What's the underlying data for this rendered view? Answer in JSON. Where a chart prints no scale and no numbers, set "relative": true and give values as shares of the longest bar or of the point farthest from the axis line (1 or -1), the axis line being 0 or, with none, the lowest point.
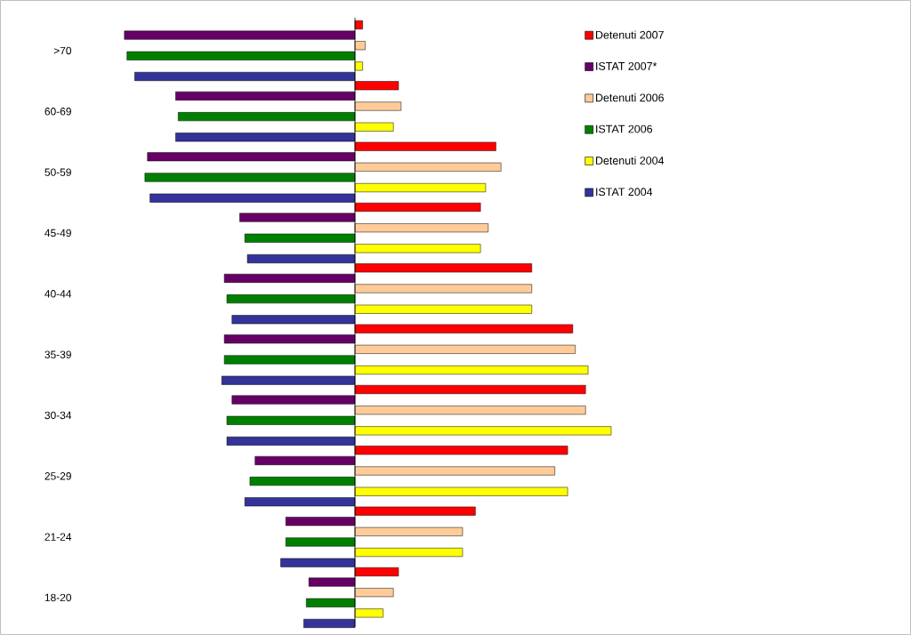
{
  "chart_data": {
    "type": "bar",
    "orientation": "horizontal",
    "relative": true,
    "legend": "top right",
    "categories": [
      ">70",
      "60-69",
      "50-59",
      "45-49",
      "40-44",
      "35-39",
      "30-34",
      "25-29",
      "21-24",
      "18-20"
    ],
    "series": [
      {
        "name": "Detenuti 2007",
        "color": "#ff0000",
        "values": [
          0.03,
          0.17,
          0.55,
          0.49,
          0.69,
          0.85,
          0.9,
          0.83,
          0.47,
          0.17
        ]
      },
      {
        "name": "ISTAT 2007*",
        "color": "#660066",
        "values": [
          -0.9,
          -0.7,
          -0.81,
          -0.45,
          -0.51,
          -0.51,
          -0.48,
          -0.39,
          -0.27,
          -0.18
        ]
      },
      {
        "name": "Detenuti 2006",
        "color": "#ffcc99",
        "values": [
          0.04,
          0.18,
          0.57,
          0.52,
          0.69,
          0.86,
          0.9,
          0.78,
          0.42,
          0.15
        ]
      },
      {
        "name": "ISTAT 2006",
        "color": "#008000",
        "values": [
          -0.89,
          -0.69,
          -0.82,
          -0.43,
          -0.5,
          -0.51,
          -0.5,
          -0.41,
          -0.27,
          -0.19
        ]
      },
      {
        "name": "Detenuti 2004",
        "color": "#ffff00",
        "values": [
          0.03,
          0.15,
          0.51,
          0.49,
          0.69,
          0.91,
          1,
          0.83,
          0.42,
          0.11
        ]
      },
      {
        "name": "ISTAT 2004",
        "color": "#333399",
        "values": [
          -0.86,
          -0.7,
          -0.8,
          -0.42,
          -0.48,
          -0.52,
          -0.5,
          -0.43,
          -0.29,
          -0.2
        ]
      }
    ]
  }
}
